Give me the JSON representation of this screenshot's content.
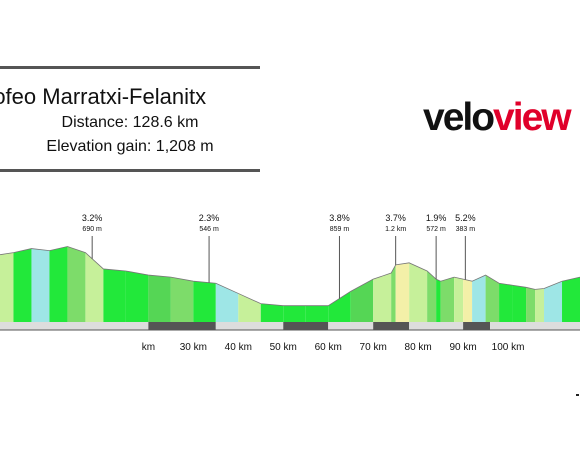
{
  "header": {
    "title": "rofeo Marratxi-Felanitx",
    "distance_line": "Distance: 128.6 km",
    "elevation_line": "Elevation gain: 1,208 m"
  },
  "logo": {
    "part_a": "velo",
    "part_b": "view"
  },
  "colors": {
    "rule": "#555555",
    "road_dark": "#555555",
    "road_light": "#dddddd",
    "brand_red": "#e0002a",
    "segment_palette": [
      "#22e83a",
      "#7ddc6a",
      "#c6f09a",
      "#f3f0a8",
      "#9ee6e6",
      "#55d655"
    ]
  },
  "chart_data": {
    "type": "area",
    "title": "",
    "xlabel": "",
    "ylabel": "",
    "x_unit": "km",
    "xlim": [
      -13,
      116
    ],
    "ylim": [
      0,
      250
    ],
    "x_ticks": [
      20,
      30,
      40,
      50,
      60,
      70,
      80,
      90,
      100
    ],
    "x_tick_labels": [
      "km",
      "30 km",
      "40 km",
      "50 km",
      "60 km",
      "70 km",
      "80 km",
      "90 km",
      "100 km"
    ],
    "profile": {
      "x": [
        -13,
        -10,
        -6,
        -2,
        2,
        6,
        10,
        15,
        20,
        25,
        30,
        35,
        40,
        45,
        50,
        55,
        60,
        65,
        70,
        74,
        75,
        78,
        82,
        84,
        85,
        88,
        90,
        92,
        95,
        98,
        101,
        104,
        106,
        108,
        112,
        116
      ],
      "y": [
        165,
        170,
        180,
        175,
        185,
        170,
        130,
        125,
        115,
        110,
        100,
        95,
        70,
        45,
        40,
        40,
        40,
        75,
        105,
        120,
        140,
        145,
        125,
        105,
        100,
        110,
        105,
        100,
        115,
        95,
        90,
        85,
        80,
        82,
        100,
        110
      ],
      "segment_colors": [
        "#c6f09a",
        "#22e83a",
        "#9ee6e6",
        "#22e83a",
        "#7ddc6a",
        "#c6f09a",
        "#22e83a",
        "#22e83a",
        "#55d655",
        "#7ddc6a",
        "#22e83a",
        "#9ee6e6",
        "#c6f09a",
        "#22e83a",
        "#22e83a",
        "#22e83a",
        "#22e83a",
        "#55d655",
        "#c6f09a",
        "#7ddc6a",
        "#f3f0a8",
        "#c6f09a",
        "#7ddc6a",
        "#22e83a",
        "#7ddc6a",
        "#c6f09a",
        "#f3f0a8",
        "#9ee6e6",
        "#7ddc6a",
        "#22e83a",
        "#22e83a",
        "#7ddc6a",
        "#c6f09a",
        "#9ee6e6",
        "#22e83a"
      ]
    },
    "climbs": [
      {
        "x": 7.5,
        "grade": "3.2%",
        "length": "690 m"
      },
      {
        "x": 33.5,
        "grade": "2.3%",
        "length": "546 m"
      },
      {
        "x": 62.5,
        "grade": "3.8%",
        "length": "859 m"
      },
      {
        "x": 75,
        "grade": "3.7%",
        "length": "1.2 km"
      },
      {
        "x": 84,
        "grade": "1.9%",
        "length": "572 m"
      },
      {
        "x": 90.5,
        "grade": "5.2%",
        "length": "383 m"
      }
    ],
    "road_bar": [
      {
        "from": -13,
        "to": 20,
        "tone": "light"
      },
      {
        "from": 20,
        "to": 35,
        "tone": "dark"
      },
      {
        "from": 35,
        "to": 50,
        "tone": "light"
      },
      {
        "from": 50,
        "to": 60,
        "tone": "dark"
      },
      {
        "from": 60,
        "to": 70,
        "tone": "light"
      },
      {
        "from": 70,
        "to": 78,
        "tone": "dark"
      },
      {
        "from": 78,
        "to": 90,
        "tone": "light"
      },
      {
        "from": 90,
        "to": 96,
        "tone": "dark"
      },
      {
        "from": 96,
        "to": 116,
        "tone": "light"
      }
    ],
    "grid": false
  }
}
